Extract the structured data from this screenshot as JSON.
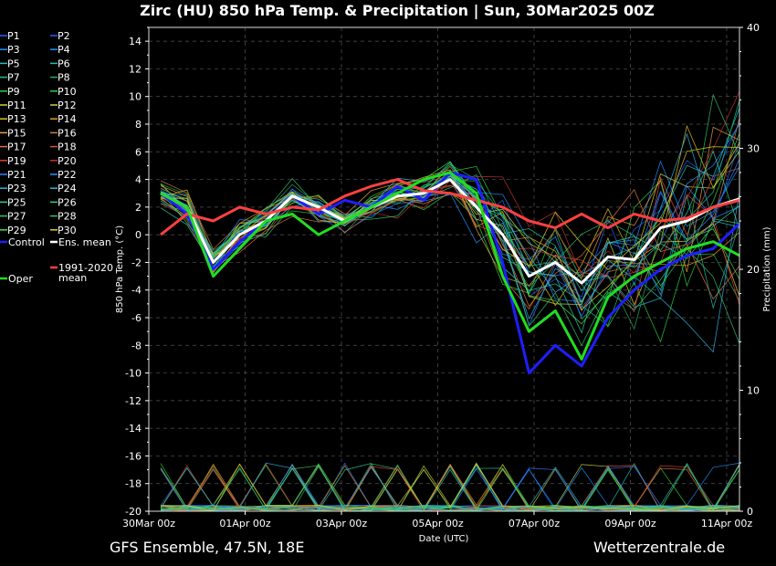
{
  "header": {
    "title": "Zirc  (HU)  850 hPa Temp. & Precipitation | Sun, 30Mar2025 00Z"
  },
  "footer": {
    "source": "GFS Ensemble, 47.5N, 18E",
    "site": "Wetterzentrale.de"
  },
  "chart_data": {
    "type": "line",
    "xlabel": "Date (UTC)",
    "ylabel": "850 hPa Temp. (°C)",
    "y2label": "Precipitation (mm)",
    "ylim": [
      -20,
      15
    ],
    "y2lim": [
      0,
      40
    ],
    "yticks": [
      "14",
      "12",
      "10",
      "8",
      "6",
      "4",
      "2",
      "0",
      "-2",
      "-4",
      "-6",
      "-8",
      "-10",
      "-12",
      "-14",
      "-16",
      "-18",
      "-20"
    ],
    "y2ticks": [
      "40",
      "30",
      "20",
      "10",
      "0"
    ],
    "xticks": [
      "30Mar 00z",
      "01Apr 00z",
      "03Apr 00z",
      "05Apr 00z",
      "07Apr 00z",
      "09Apr 00z",
      "11Apr 00z"
    ],
    "grid": true,
    "legend_position": "left",
    "legend_entries": [
      {
        "label": "P1",
        "color": "#1e64ff"
      },
      {
        "label": "P2",
        "color": "#1e64ff"
      },
      {
        "label": "P3",
        "color": "#1e90ff"
      },
      {
        "label": "P4",
        "color": "#1e90ff"
      },
      {
        "label": "P5",
        "color": "#20c0c0"
      },
      {
        "label": "P6",
        "color": "#20c0a0"
      },
      {
        "label": "P7",
        "color": "#20c080"
      },
      {
        "label": "P8",
        "color": "#20b060"
      },
      {
        "label": "P9",
        "color": "#30d040"
      },
      {
        "label": "P10",
        "color": "#30d040"
      },
      {
        "label": "P11",
        "color": "#d0d040"
      },
      {
        "label": "P12",
        "color": "#d0d040"
      },
      {
        "label": "P13",
        "color": "#e0c020"
      },
      {
        "label": "P14",
        "color": "#e0a020"
      },
      {
        "label": "P15",
        "color": "#e0a040"
      },
      {
        "label": "P16",
        "color": "#d08040"
      },
      {
        "label": "P17",
        "color": "#e07040"
      },
      {
        "label": "P18",
        "color": "#e05030"
      },
      {
        "label": "P19",
        "color": "#e04030"
      },
      {
        "label": "P20",
        "color": "#c03030"
      },
      {
        "label": "P21",
        "color": "#3080ff"
      },
      {
        "label": "P22",
        "color": "#3090ff"
      },
      {
        "label": "P23",
        "color": "#30b0e0"
      },
      {
        "label": "P24",
        "color": "#30b0e0"
      },
      {
        "label": "P25",
        "color": "#30d0a0"
      },
      {
        "label": "P26",
        "color": "#30d0a0"
      },
      {
        "label": "P27",
        "color": "#30c070"
      },
      {
        "label": "P28",
        "color": "#30c070"
      },
      {
        "label": "P29",
        "color": "#40e040"
      },
      {
        "label": "P30",
        "color": "#e0d020"
      },
      {
        "label": "Control",
        "color": "#1e1eff"
      },
      {
        "label": "Ens. mean",
        "color": "#ffffff"
      },
      {
        "label": "1991-2020\nmean",
        "color": "#ff4040"
      },
      {
        "label": "Oper",
        "color": "#22dd22"
      }
    ],
    "series": [
      {
        "name": "Control",
        "color": "#1e1eff",
        "values": [
          3,
          1.5,
          -2.5,
          -0.5,
          1,
          2.8,
          1.5,
          2.5,
          2,
          3.5,
          2.5,
          4.5,
          4,
          -2,
          -10,
          -8,
          -9.5,
          -6,
          -4,
          -2.5,
          -1.5,
          -1,
          0.8
        ]
      },
      {
        "name": "Ens. mean",
        "color": "#ffffff",
        "values": [
          3,
          2,
          -2,
          0,
          1,
          2.8,
          2,
          1,
          2,
          2.8,
          3,
          4,
          2,
          0,
          -3,
          -2,
          -3.5,
          -1.6,
          -1.8,
          0.5,
          1,
          2,
          2.6
        ]
      },
      {
        "name": "1991-2020\nmean",
        "color": "#ff4040",
        "values": [
          0,
          1.5,
          1,
          2,
          1.5,
          2,
          1.8,
          2.8,
          3.5,
          4,
          3.2,
          3,
          2.5,
          2,
          1,
          0.5,
          1.5,
          0.5,
          1.5,
          1,
          1.2,
          2,
          2.5
        ]
      },
      {
        "name": "Oper",
        "color": "#22dd22",
        "values": [
          3,
          2,
          -3,
          -1,
          1,
          1.5,
          0,
          1,
          2,
          3,
          4,
          4.5,
          3,
          -3,
          -7,
          -5.5,
          -9,
          -4.5,
          -3,
          -2,
          -1,
          -0.5,
          -1.5
        ]
      }
    ]
  }
}
